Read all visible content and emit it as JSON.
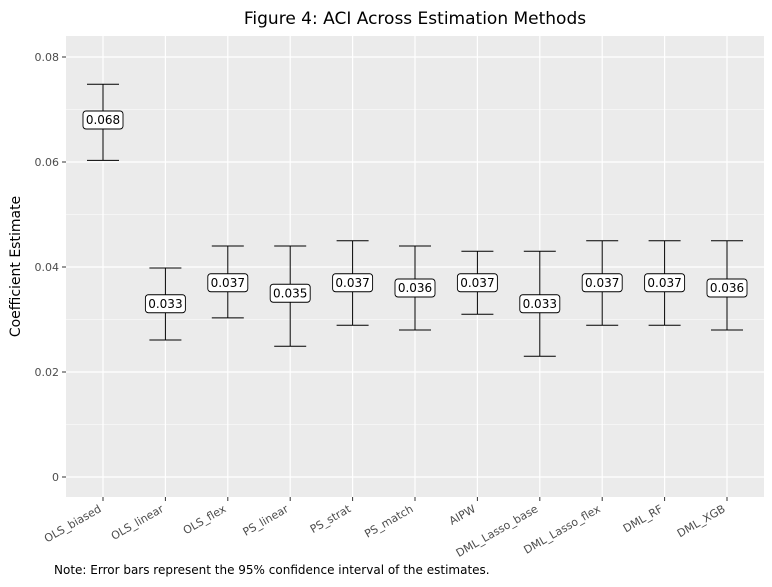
{
  "chart_data": {
    "type": "errorbar",
    "title": "Figure 4: ACI Across Estimation Methods",
    "xlabel": "",
    "ylabel": "Coefficient Estimate",
    "note": "Note: Error bars represent the 95% confidence interval of the estimates.",
    "ylim": [
      -0.0015,
      0.0835
    ],
    "yticks": [
      0,
      0.02,
      0.04,
      0.06,
      0.08
    ],
    "ytick_labels": [
      "0",
      "0.02",
      "0.04",
      "0.06",
      "0.08"
    ],
    "grid": true,
    "categories": [
      "OLS_biased",
      "OLS_linear",
      "OLS_flex",
      "PS_linear",
      "PS_strat",
      "PS_match",
      "AIPW",
      "DML_Lasso_base",
      "DML_Lasso_flex",
      "DML_RF",
      "DML_XGB"
    ],
    "estimates": [
      0.068,
      0.033,
      0.037,
      0.035,
      0.037,
      0.036,
      0.037,
      0.033,
      0.037,
      0.037,
      0.036
    ],
    "estimate_labels": [
      "0.068",
      "0.033",
      "0.037",
      "0.035",
      "0.037",
      "0.036",
      "0.037",
      "0.033",
      "0.037",
      "0.037",
      "0.036"
    ],
    "ci_lower": [
      0.0603,
      0.0261,
      0.0303,
      0.0249,
      0.0289,
      0.028,
      0.031,
      0.023,
      0.0289,
      0.0289,
      0.028
    ],
    "ci_upper": [
      0.0748,
      0.0398,
      0.044,
      0.044,
      0.045,
      0.044,
      0.043,
      0.043,
      0.045,
      0.045,
      0.045
    ]
  },
  "colors": {
    "panel_bg": "#ebebeb",
    "grid": "#ffffff",
    "errorbar": "#000000",
    "label_fill": "#ffffff"
  }
}
